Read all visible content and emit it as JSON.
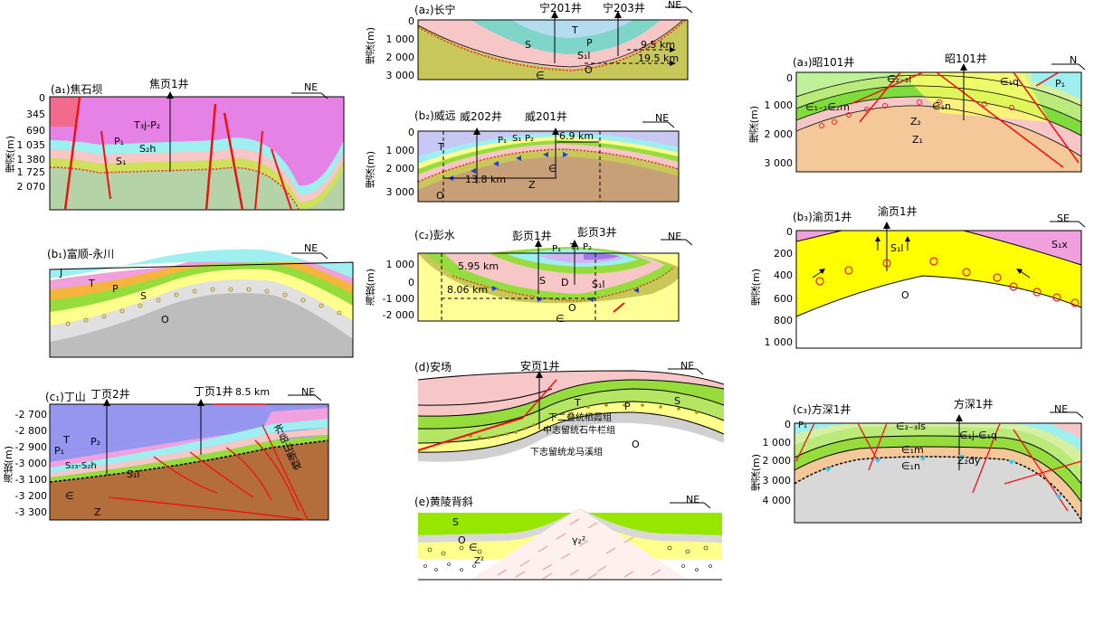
{
  "panels": {
    "a1": {
      "title": "(a₁)焦石坝",
      "well": "焦页1井",
      "dir": "NE",
      "ylabel": "埋深(m)",
      "ticks": [
        "0",
        "345",
        "690",
        "1 035",
        "1 380",
        "1 725",
        "2 070"
      ],
      "units": [
        "T₃j-P₂",
        "P₁",
        "S₂h",
        "S₁"
      ]
    },
    "a2": {
      "title": "(a₂)长宁",
      "wells": [
        "宁201井",
        "宁203井"
      ],
      "dir": "NE",
      "ylabel": "埋深(m)",
      "ticks": [
        "0",
        "1 000",
        "2 000",
        "3 000"
      ],
      "units": [
        "T",
        "P",
        "S",
        "S₁l",
        "O",
        "∈"
      ],
      "dist": [
        "9.5 km",
        "19.5 km"
      ]
    },
    "a3": {
      "title": "(a₃)昭101井",
      "well": "昭101井",
      "dir": "N",
      "ylabel": "埋深(m)",
      "ticks": [
        "0",
        "1 000",
        "2 000",
        "3 000"
      ],
      "units": [
        "∈₂₋₃l",
        "∈₁q",
        "P₁",
        "∈₁₋₂∈₂m",
        "∈₁n",
        "Z₂",
        "Z₁"
      ]
    },
    "b1": {
      "title": "(b₁)富顺-永川",
      "dir": "NE",
      "units": [
        "J",
        "T",
        "P",
        "S",
        "O"
      ]
    },
    "b2": {
      "title": "(b₂)威远",
      "wells": [
        "威202井",
        "威201井"
      ],
      "dir": "NE",
      "ylabel": "埋深(m)",
      "ticks": [
        "0",
        "1 000",
        "2 000",
        "3 000"
      ],
      "units": [
        "T",
        "P₁",
        "S₁",
        "P₂",
        "O",
        "Z",
        "∈"
      ],
      "dist": [
        "6.9 km",
        "13.8 km"
      ]
    },
    "b3": {
      "title": "(b₃)渝页1井",
      "well": "渝页1井",
      "dir": "SE",
      "ylabel": "埋深(m)",
      "ticks": [
        "0",
        "200",
        "400",
        "600",
        "800",
        "1 000"
      ],
      "units": [
        "S₁l",
        "S₁x",
        "O"
      ]
    },
    "c1": {
      "title": "(c₁)丁山",
      "wells": [
        "丁页2井",
        "丁页1井"
      ],
      "dist": "8.5 km",
      "dir": "NE",
      "ylabel": "海拔(m)",
      "ticks": [
        "-2 700",
        "-2 800",
        "-2 900",
        "-3 000",
        "-3 100",
        "-3 200",
        "-3 300"
      ],
      "units": [
        "T",
        "P₁",
        "P₂",
        "S₂₃-S₂h",
        "S₁l",
        "∈",
        "Z"
      ],
      "fault": "齐岳山断裂"
    },
    "c2": {
      "title": "(c₂)彭水",
      "wells": [
        "彭页1井",
        "彭页3井"
      ],
      "dir": "NE",
      "ylabel": "海拔(m)",
      "ticks": [
        "1 000",
        "0",
        "-1 000",
        "-2 000"
      ],
      "units": [
        "P₁",
        "T₁",
        "P₂",
        "S",
        "D",
        "S₁l",
        "O",
        "∈"
      ],
      "dist": [
        "5.95 km",
        "8.06 km"
      ]
    },
    "c3": {
      "title": "(c₃)方深1井",
      "well": "方深1井",
      "dir": "NE",
      "ylabel": "埋深(m)",
      "ticks": [
        "0",
        "1 000",
        "2 000",
        "3 000",
        "4 000"
      ],
      "units": [
        "P₁",
        "∈₂₋₃ls",
        "∈₁j-∈₁q",
        "∈₁m",
        "∈₁n",
        "Z₂dy"
      ]
    },
    "d": {
      "title": "(d)安场",
      "well": "安页1井",
      "dir": "NE",
      "units": [
        "T",
        "P",
        "S",
        "O"
      ],
      "layers": [
        "下二叠统栖霞组",
        "中志留统石牛栏组",
        "下志留统龙马溪组"
      ]
    },
    "e": {
      "title": "(e)黄陵背斜",
      "dir": "NE",
      "units": [
        "S",
        "O",
        "∈",
        "Z²",
        "γ₂²"
      ]
    }
  }
}
